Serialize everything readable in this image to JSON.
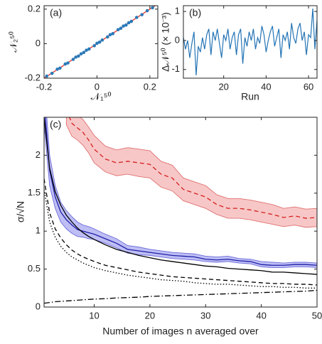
{
  "chart_data": [
    {
      "type": "scatter",
      "title": "(a)",
      "xlabel": "𝒩₁⁵⁰",
      "ylabel": "𝒩₂⁵⁰",
      "xlim": [
        -0.2,
        0.23
      ],
      "ylim": [
        -0.2,
        0.22
      ],
      "xticks": [
        -0.2,
        0,
        0.2
      ],
      "yticks": [
        -0.2,
        0,
        0.2
      ],
      "series": [
        {
          "style": "solid",
          "color": "#e8312a",
          "x": [
            -0.2,
            0.23
          ],
          "values": [
            -0.2,
            0.23
          ]
        },
        {
          "style": "markers",
          "color": "#2a7ab9",
          "x": [
            -0.19,
            -0.17,
            -0.15,
            -0.14,
            -0.12,
            -0.11,
            -0.09,
            -0.08,
            -0.07,
            -0.06,
            -0.05,
            -0.04,
            -0.03,
            -0.01,
            0.0,
            0.01,
            0.02,
            0.04,
            0.05,
            0.06,
            0.08,
            0.09,
            0.1,
            0.11,
            0.12,
            0.13,
            0.15,
            0.17,
            0.19,
            0.21
          ],
          "values": [
            -0.188,
            -0.172,
            -0.148,
            -0.142,
            -0.118,
            -0.112,
            -0.091,
            -0.078,
            -0.072,
            -0.059,
            -0.051,
            -0.038,
            -0.031,
            -0.012,
            0.002,
            0.009,
            0.021,
            0.039,
            0.052,
            0.058,
            0.081,
            0.089,
            0.102,
            0.108,
            0.121,
            0.129,
            0.152,
            0.168,
            0.191,
            0.208
          ]
        }
      ]
    },
    {
      "type": "line",
      "title": "(b)",
      "xlabel": "Run",
      "ylabel": "Δ𝒩⁵⁰ (× 10⁻³)",
      "xlim": [
        1,
        64
      ],
      "ylim": [
        -1.3,
        1.2
      ],
      "xticks": [
        20,
        40,
        60
      ],
      "yticks": [
        -1,
        0,
        1
      ],
      "x": [
        1,
        2,
        3,
        4,
        5,
        6,
        7,
        8,
        9,
        10,
        11,
        12,
        13,
        14,
        15,
        16,
        17,
        18,
        19,
        20,
        21,
        22,
        23,
        24,
        25,
        26,
        27,
        28,
        29,
        30,
        31,
        32,
        33,
        34,
        35,
        36,
        37,
        38,
        39,
        40,
        41,
        42,
        43,
        44,
        45,
        46,
        47,
        48,
        49,
        50,
        51,
        52,
        53,
        54,
        55,
        56,
        57,
        58,
        59,
        60,
        61,
        62,
        63,
        64
      ],
      "series": [
        {
          "style": "solid",
          "color": "#2474b5",
          "values": [
            0.1,
            -0.3,
            0.0,
            -0.6,
            -0.1,
            0.3,
            -1.2,
            -0.2,
            -0.4,
            0.1,
            -0.3,
            0.2,
            0.4,
            -0.5,
            0.3,
            0.0,
            0.4,
            -0.1,
            -0.6,
            0.2,
            0.0,
            0.4,
            -0.3,
            0.1,
            0.3,
            -0.5,
            0.2,
            0.4,
            -0.8,
            0.1,
            -0.2,
            0.3,
            0.0,
            0.4,
            -0.3,
            0.1,
            -0.1,
            0.5,
            0.2,
            -0.4,
            0.0,
            0.3,
            0.5,
            -0.2,
            0.1,
            0.4,
            -0.6,
            0.2,
            0.0,
            0.3,
            -0.3,
            0.6,
            0.1,
            -0.1,
            0.4,
            0.6,
            0.0,
            0.3,
            -0.5,
            0.2,
            0.1,
            1.1,
            -0.3,
            0.7
          ]
        }
      ]
    },
    {
      "type": "line",
      "title": "(c)",
      "xlabel": "Number of images n averaged over",
      "ylabel": "σ/√N",
      "xlim": [
        1,
        50
      ],
      "ylim": [
        0,
        2.5
      ],
      "xticks": [
        10,
        20,
        30,
        40,
        50
      ],
      "yticks": [
        0,
        0.5,
        1,
        1.5,
        2
      ],
      "x": [
        1,
        2,
        3,
        4,
        5,
        6,
        7,
        8,
        9,
        10,
        12,
        14,
        16,
        18,
        20,
        22,
        24,
        26,
        28,
        30,
        32,
        34,
        36,
        38,
        40,
        42,
        44,
        46,
        48,
        50
      ],
      "series": [
        {
          "style": "dashed",
          "color": "#d42020",
          "band_color": "#f4b4b4",
          "band_edge": "#e07070",
          "values": [
            null,
            null,
            null,
            null,
            2.6,
            2.42,
            2.36,
            2.3,
            2.2,
            2.08,
            1.95,
            1.9,
            1.92,
            1.9,
            1.88,
            1.75,
            1.7,
            1.55,
            1.5,
            1.45,
            1.35,
            1.3,
            1.3,
            1.28,
            1.25,
            1.22,
            1.18,
            1.2,
            1.17,
            1.18
          ],
          "lower": [
            null,
            null,
            null,
            null,
            2.4,
            2.25,
            2.2,
            2.13,
            2.03,
            1.9,
            1.78,
            1.73,
            1.75,
            1.72,
            1.7,
            1.58,
            1.53,
            1.4,
            1.35,
            1.3,
            1.22,
            1.17,
            1.17,
            1.15,
            1.12,
            1.09,
            1.06,
            1.08,
            1.05,
            1.06
          ],
          "upper": [
            null,
            null,
            null,
            null,
            2.8,
            2.6,
            2.53,
            2.47,
            2.37,
            2.26,
            2.12,
            2.07,
            2.1,
            2.08,
            2.06,
            1.92,
            1.87,
            1.7,
            1.65,
            1.6,
            1.48,
            1.43,
            1.43,
            1.41,
            1.38,
            1.35,
            1.3,
            1.32,
            1.29,
            1.3
          ]
        },
        {
          "style": "solid",
          "color": "#1f1fa8",
          "band_color": "#a8a8f2",
          "band_edge": "#6b6bd9",
          "values": [
            2.7,
            1.8,
            1.45,
            1.25,
            1.15,
            1.08,
            1.02,
            1.0,
            0.98,
            0.96,
            0.9,
            0.84,
            0.76,
            0.74,
            0.72,
            0.7,
            0.68,
            0.67,
            0.66,
            0.63,
            0.62,
            0.63,
            0.61,
            0.6,
            0.56,
            0.55,
            0.55,
            0.56,
            0.56,
            0.55
          ],
          "lower": [
            2.4,
            1.6,
            1.3,
            1.12,
            1.03,
            0.97,
            0.93,
            0.92,
            0.9,
            0.89,
            0.84,
            0.78,
            0.71,
            0.69,
            0.68,
            0.66,
            0.64,
            0.63,
            0.62,
            0.6,
            0.59,
            0.6,
            0.58,
            0.57,
            0.53,
            0.52,
            0.52,
            0.53,
            0.53,
            0.52
          ],
          "upper": [
            3.0,
            2.0,
            1.6,
            1.38,
            1.27,
            1.19,
            1.12,
            1.08,
            1.06,
            1.03,
            0.96,
            0.9,
            0.81,
            0.79,
            0.76,
            0.74,
            0.72,
            0.71,
            0.7,
            0.67,
            0.66,
            0.67,
            0.64,
            0.63,
            0.6,
            0.59,
            0.58,
            0.59,
            0.59,
            0.58
          ]
        },
        {
          "style": "solid",
          "color": "#000000",
          "values": [
            2.5,
            1.83,
            1.52,
            1.34,
            1.21,
            1.12,
            1.04,
            0.98,
            0.93,
            0.89,
            0.82,
            0.76,
            0.72,
            0.68,
            0.65,
            0.62,
            0.6,
            0.58,
            0.56,
            0.54,
            0.53,
            0.51,
            0.5,
            0.49,
            0.48,
            0.46,
            0.46,
            0.45,
            0.44,
            0.43
          ]
        },
        {
          "style": "dashed",
          "color": "#000000",
          "values": [
            1.69,
            1.24,
            1.03,
            0.91,
            0.82,
            0.75,
            0.7,
            0.66,
            0.63,
            0.6,
            0.55,
            0.52,
            0.49,
            0.46,
            0.44,
            0.42,
            0.4,
            0.39,
            0.38,
            0.37,
            0.36,
            0.35,
            0.34,
            0.33,
            0.32,
            0.31,
            0.31,
            0.3,
            0.3,
            0.29
          ]
        },
        {
          "style": "dotted",
          "color": "#000000",
          "values": [
            1.55,
            1.12,
            0.92,
            0.8,
            0.72,
            0.66,
            0.62,
            0.58,
            0.55,
            0.52,
            0.48,
            0.45,
            0.42,
            0.4,
            0.38,
            0.36,
            0.35,
            0.34,
            0.32,
            0.31,
            0.3,
            0.3,
            0.29,
            0.28,
            0.27,
            0.27,
            0.26,
            0.26,
            0.25,
            0.25
          ]
        },
        {
          "style": "dashdot",
          "color": "#000000",
          "values": [
            0.05,
            0.06,
            0.07,
            0.075,
            0.08,
            0.085,
            0.09,
            0.095,
            0.1,
            0.105,
            0.11,
            0.12,
            0.125,
            0.13,
            0.14,
            0.145,
            0.15,
            0.155,
            0.16,
            0.165,
            0.17,
            0.175,
            0.18,
            0.185,
            0.19,
            0.195,
            0.2,
            0.205,
            0.21,
            0.22
          ]
        }
      ]
    }
  ]
}
